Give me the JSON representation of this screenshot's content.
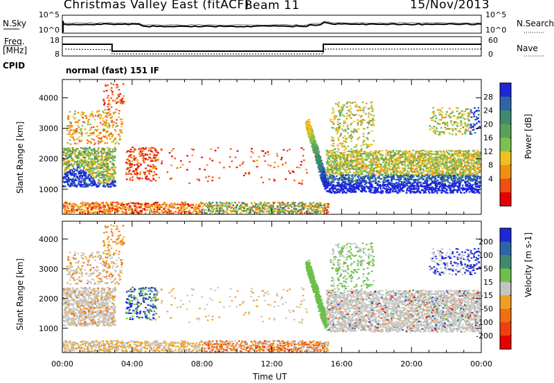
{
  "header": {
    "title": "Christmas Valley East (fitACF)",
    "beam": "Beam 11",
    "date": "15/Nov/2013"
  },
  "strips": {
    "nsky_label": "N.Sky",
    "nsearch_label": "N.Search",
    "freq_label_1": "Freq.",
    "freq_label_2": "[MHz]",
    "nave_label": "Nave",
    "cpid_label": "CPID",
    "cpid_value": "normal (fast) 151 IF",
    "noise_ticks_left": [
      "10^5",
      "10^0"
    ],
    "noise_ticks_right": [
      "10^5",
      "10^0"
    ],
    "freq_ticks": [
      "18",
      "8"
    ],
    "nave_ticks": [
      "60",
      "0"
    ]
  },
  "colors": {
    "power": [
      "#1c28d8",
      "#2e64a8",
      "#3f8a6e",
      "#5aa05a",
      "#7cc050",
      "#f0c020",
      "#f09010",
      "#f05010",
      "#e60000"
    ],
    "velocity": [
      "#1c28d8",
      "#2e64a8",
      "#3f8a6e",
      "#6cc04a",
      "#c4c4c0",
      "#f0a020",
      "#f07010",
      "#f04010",
      "#e60000"
    ]
  },
  "chart_data": [
    {
      "type": "heatmap",
      "name": "power",
      "ylabel": "Slant Range [km]",
      "xlabel": "",
      "xlim": [
        0,
        24
      ],
      "ylim": [
        180,
        4600
      ],
      "yticks": [
        "4000",
        "3000",
        "2000",
        "1000"
      ],
      "colorbar_label": "Power [dB]",
      "colorbar_ticks": [
        "28",
        "24",
        "20",
        "16",
        "12",
        "8",
        "4"
      ]
    },
    {
      "type": "heatmap",
      "name": "velocity",
      "ylabel": "Slant Range [km]",
      "xlabel": "Time UT",
      "xlim": [
        0,
        24
      ],
      "ylim": [
        180,
        4600
      ],
      "xticks": [
        "00:00",
        "04:00",
        "08:00",
        "12:00",
        "16:00",
        "20:00",
        "00:00"
      ],
      "yticks": [
        "4000",
        "3000",
        "2000",
        "1000"
      ],
      "colorbar_label": "Velocity [m s-1]",
      "colorbar_ticks": [
        "200",
        "100",
        "50",
        "15",
        "-15",
        "-50",
        "-100",
        "-200"
      ]
    }
  ]
}
